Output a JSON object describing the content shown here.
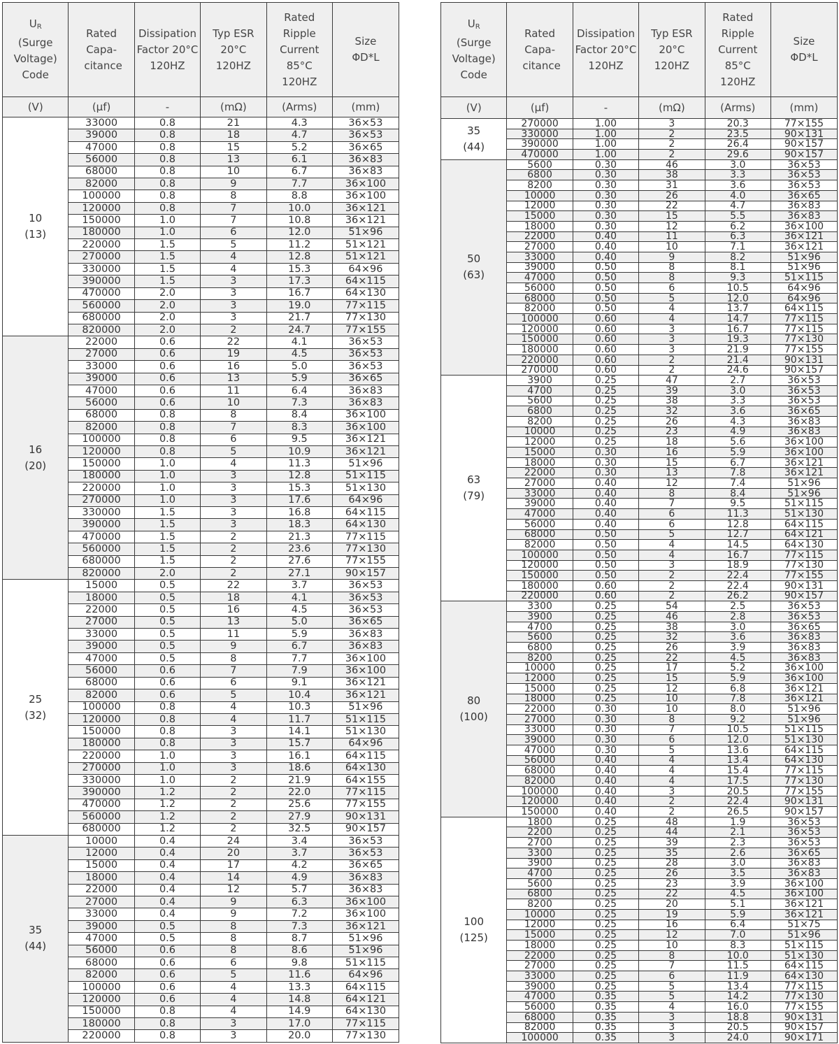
{
  "headers": {
    "voltage": [
      "U",
      "R",
      "(Surge",
      "Voltage)",
      "Code"
    ],
    "capacitance": "Rated Capa- citance",
    "df": "Dissipation Factor 20°C 120HZ",
    "esr": "Typ ESR 20°C 120HZ",
    "ripple": "Rated Ripple Current 85°C 120HZ",
    "size": "Size ΦD*L"
  },
  "units": [
    "(V)",
    "(μf)",
    "-",
    "(mΩ)",
    "(Arms)",
    "(mm)"
  ],
  "colors": {
    "header_bg": "#efefef",
    "stripe": "#efefef",
    "border": "#3a3a3a"
  },
  "left_table": [
    {
      "voltage": "10",
      "surge": "(13)",
      "rows": [
        [
          "33000",
          "0.8",
          "21",
          "4.3",
          "36×53"
        ],
        [
          "39000",
          "0.8",
          "18",
          "4.7",
          "36×53"
        ],
        [
          "47000",
          "0.8",
          "15",
          "5.2",
          "36×65"
        ],
        [
          "56000",
          "0.8",
          "13",
          "6.1",
          "36×83"
        ],
        [
          "68000",
          "0.8",
          "10",
          "6.7",
          "36×83"
        ],
        [
          "82000",
          "0.8",
          "9",
          "7.7",
          "36×100"
        ],
        [
          "100000",
          "0.8",
          "8",
          "8.8",
          "36×100"
        ],
        [
          "120000",
          "0.8",
          "7",
          "10.0",
          "36×121"
        ],
        [
          "150000",
          "1.0",
          "7",
          "10.8",
          "36×121"
        ],
        [
          "180000",
          "1.0",
          "6",
          "12.0",
          "51×96"
        ],
        [
          "220000",
          "1.5",
          "5",
          "11.2",
          "51×121"
        ],
        [
          "270000",
          "1.5",
          "4",
          "12.8",
          "51×121"
        ],
        [
          "330000",
          "1.5",
          "4",
          "15.3",
          "64×96"
        ],
        [
          "390000",
          "1.5",
          "3",
          "17.3",
          "64×115"
        ],
        [
          "470000",
          "2.0",
          "3",
          "16.7",
          "64×130"
        ],
        [
          "560000",
          "2.0",
          "3",
          "19.0",
          "77×115"
        ],
        [
          "680000",
          "2.0",
          "3",
          "21.7",
          "77×130"
        ],
        [
          "820000",
          "2.0",
          "2",
          "24.7",
          "77×155"
        ]
      ]
    },
    {
      "voltage": "16",
      "surge": "(20)",
      "rows": [
        [
          "22000",
          "0.6",
          "22",
          "4.1",
          "36×53"
        ],
        [
          "27000",
          "0.6",
          "19",
          "4.5",
          "36×53"
        ],
        [
          "33000",
          "0.6",
          "16",
          "5.0",
          "36×53"
        ],
        [
          "39000",
          "0.6",
          "13",
          "5.9",
          "36×65"
        ],
        [
          "47000",
          "0.6",
          "11",
          "6.4",
          "36×83"
        ],
        [
          "56000",
          "0.6",
          "10",
          "7.3",
          "36×83"
        ],
        [
          "68000",
          "0.8",
          "8",
          "8.4",
          "36×100"
        ],
        [
          "82000",
          "0.8",
          "7",
          "8.3",
          "36×100"
        ],
        [
          "100000",
          "0.8",
          "6",
          "9.5",
          "36×121"
        ],
        [
          "120000",
          "0.8",
          "5",
          "10.9",
          "36×121"
        ],
        [
          "150000",
          "1.0",
          "4",
          "11.3",
          "51×96"
        ],
        [
          "180000",
          "1.0",
          "3",
          "12.8",
          "51×115"
        ],
        [
          "220000",
          "1.0",
          "3",
          "15.3",
          "51×130"
        ],
        [
          "270000",
          "1.0",
          "3",
          "17.6",
          "64×96"
        ],
        [
          "330000",
          "1.5",
          "3",
          "16.8",
          "64×115"
        ],
        [
          "390000",
          "1.5",
          "3",
          "18.3",
          "64×130"
        ],
        [
          "470000",
          "1.5",
          "2",
          "21.3",
          "77×115"
        ],
        [
          "560000",
          "1.5",
          "2",
          "23.6",
          "77×130"
        ],
        [
          "680000",
          "1.5",
          "2",
          "27.6",
          "77×155"
        ],
        [
          "820000",
          "2.0",
          "2",
          "27.1",
          "90×157"
        ]
      ]
    },
    {
      "voltage": "25",
      "surge": "(32)",
      "rows": [
        [
          "15000",
          "0.5",
          "22",
          "3.7",
          "36×53"
        ],
        [
          "18000",
          "0.5",
          "18",
          "4.1",
          "36×53"
        ],
        [
          "22000",
          "0.5",
          "16",
          "4.5",
          "36×53"
        ],
        [
          "27000",
          "0.5",
          "13",
          "5.0",
          "36×65"
        ],
        [
          "33000",
          "0.5",
          "11",
          "5.9",
          "36×83"
        ],
        [
          "39000",
          "0.5",
          "9",
          "6.7",
          "36×83"
        ],
        [
          "47000",
          "0.5",
          "8",
          "7.7",
          "36×100"
        ],
        [
          "56000",
          "0.6",
          "7",
          "7.9",
          "36×100"
        ],
        [
          "68000",
          "0.6",
          "6",
          "9.1",
          "36×121"
        ],
        [
          "82000",
          "0.6",
          "5",
          "10.4",
          "36×121"
        ],
        [
          "100000",
          "0.8",
          "4",
          "10.3",
          "51×96"
        ],
        [
          "120000",
          "0.8",
          "4",
          "11.7",
          "51×115"
        ],
        [
          "150000",
          "0.8",
          "3",
          "14.1",
          "51×130"
        ],
        [
          "180000",
          "0.8",
          "3",
          "15.7",
          "64×96"
        ],
        [
          "220000",
          "1.0",
          "3",
          "16.1",
          "64×115"
        ],
        [
          "270000",
          "1.0",
          "3",
          "18.6",
          "64×130"
        ],
        [
          "330000",
          "1.0",
          "2",
          "21.9",
          "64×155"
        ],
        [
          "390000",
          "1.2",
          "2",
          "22.0",
          "77×115"
        ],
        [
          "470000",
          "1.2",
          "2",
          "25.6",
          "77×155"
        ],
        [
          "560000",
          "1.2",
          "2",
          "27.9",
          "90×131"
        ],
        [
          "680000",
          "1.2",
          "2",
          "32.5",
          "90×157"
        ]
      ]
    },
    {
      "voltage": "35",
      "surge": "(44)",
      "rows": [
        [
          "10000",
          "0.4",
          "24",
          "3.4",
          "36×53"
        ],
        [
          "12000",
          "0.4",
          "20",
          "3.7",
          "36×53"
        ],
        [
          "15000",
          "0.4",
          "17",
          "4.2",
          "36×65"
        ],
        [
          "18000",
          "0.4",
          "14",
          "4.9",
          "36×83"
        ],
        [
          "22000",
          "0.4",
          "12",
          "5.7",
          "36×83"
        ],
        [
          "27000",
          "0.4",
          "9",
          "6.3",
          "36×100"
        ],
        [
          "33000",
          "0.4",
          "9",
          "7.2",
          "36×100"
        ],
        [
          "39000",
          "0.5",
          "8",
          "7.3",
          "36×121"
        ],
        [
          "47000",
          "0.5",
          "8",
          "8.7",
          "51×96"
        ],
        [
          "56000",
          "0.6",
          "8",
          "8.6",
          "51×96"
        ],
        [
          "68000",
          "0.6",
          "6",
          "9.8",
          "51×115"
        ],
        [
          "82000",
          "0.6",
          "5",
          "11.6",
          "64×96"
        ],
        [
          "100000",
          "0.6",
          "4",
          "13.3",
          "64×115"
        ],
        [
          "120000",
          "0.6",
          "4",
          "14.8",
          "64×121"
        ],
        [
          "150000",
          "0.8",
          "4",
          "14.9",
          "64×130"
        ],
        [
          "180000",
          "0.8",
          "3",
          "17.0",
          "77×115"
        ],
        [
          "220000",
          "0.8",
          "3",
          "20.0",
          "77×130"
        ]
      ]
    }
  ],
  "right_table": [
    {
      "voltage": "35",
      "surge": "(44)",
      "rows": [
        [
          "270000",
          "1.00",
          "3",
          "20.3",
          "77×155"
        ],
        [
          "330000",
          "1.00",
          "2",
          "23.5",
          "90×131"
        ],
        [
          "390000",
          "1.00",
          "2",
          "26.4",
          "90×157"
        ],
        [
          "470000",
          "1.00",
          "2",
          "29.6",
          "90×157"
        ]
      ]
    },
    {
      "voltage": "50",
      "surge": "(63)",
      "rows": [
        [
          "5600",
          "0.30",
          "46",
          "3.0",
          "36×53"
        ],
        [
          "6800",
          "0.30",
          "38",
          "3.3",
          "36×53"
        ],
        [
          "8200",
          "0.30",
          "31",
          "3.6",
          "36×53"
        ],
        [
          "10000",
          "0.30",
          "26",
          "4.0",
          "36×65"
        ],
        [
          "12000",
          "0.30",
          "22",
          "4.7",
          "36×83"
        ],
        [
          "15000",
          "0.30",
          "15",
          "5.5",
          "36×83"
        ],
        [
          "18000",
          "0.30",
          "12",
          "6.2",
          "36×100"
        ],
        [
          "22000",
          "0.40",
          "11",
          "6.3",
          "36×121"
        ],
        [
          "27000",
          "0.40",
          "10",
          "7.1",
          "36×121"
        ],
        [
          "33000",
          "0.40",
          "9",
          "8.2",
          "51×96"
        ],
        [
          "39000",
          "0.50",
          "8",
          "8.1",
          "51×96"
        ],
        [
          "47000",
          "0.50",
          "8",
          "9.3",
          "51×115"
        ],
        [
          "56000",
          "0.50",
          "6",
          "10.5",
          "64×96"
        ],
        [
          "68000",
          "0.50",
          "5",
          "12.0",
          "64×96"
        ],
        [
          "82000",
          "0.50",
          "4",
          "13.7",
          "64×115"
        ],
        [
          "100000",
          "0.60",
          "4",
          "14.7",
          "77×115"
        ],
        [
          "120000",
          "0.60",
          "3",
          "16.7",
          "77×115"
        ],
        [
          "150000",
          "0.60",
          "3",
          "19.3",
          "77×130"
        ],
        [
          "180000",
          "0.60",
          "3",
          "21.9",
          "77×155"
        ],
        [
          "220000",
          "0.60",
          "2",
          "21.4",
          "90×131"
        ],
        [
          "270000",
          "0.60",
          "2",
          "24.6",
          "90×157"
        ]
      ]
    },
    {
      "voltage": "63",
      "surge": "(79)",
      "rows": [
        [
          "3900",
          "0.25",
          "47",
          "2.7",
          "36×53"
        ],
        [
          "4700",
          "0.25",
          "39",
          "3.0",
          "36×53"
        ],
        [
          "5600",
          "0.25",
          "38",
          "3.3",
          "36×53"
        ],
        [
          "6800",
          "0.25",
          "32",
          "3.6",
          "36×65"
        ],
        [
          "8200",
          "0.25",
          "26",
          "4.3",
          "36×83"
        ],
        [
          "10000",
          "0.25",
          "23",
          "4.9",
          "36×83"
        ],
        [
          "12000",
          "0.25",
          "18",
          "5.6",
          "36×100"
        ],
        [
          "15000",
          "0.30",
          "16",
          "5.9",
          "36×100"
        ],
        [
          "18000",
          "0.30",
          "15",
          "6.7",
          "36×121"
        ],
        [
          "22000",
          "0.30",
          "13",
          "7.8",
          "36×121"
        ],
        [
          "27000",
          "0.40",
          "12",
          "7.4",
          "51×96"
        ],
        [
          "33000",
          "0.40",
          "8",
          "8.4",
          "51×96"
        ],
        [
          "39000",
          "0.40",
          "7",
          "9.5",
          "51×115"
        ],
        [
          "47000",
          "0.40",
          "6",
          "11.3",
          "51×130"
        ],
        [
          "56000",
          "0.40",
          "6",
          "12.8",
          "64×115"
        ],
        [
          "68000",
          "0.50",
          "5",
          "12.7",
          "64×121"
        ],
        [
          "82000",
          "0.50",
          "4",
          "14.5",
          "64×130"
        ],
        [
          "100000",
          "0.50",
          "4",
          "16.7",
          "77×115"
        ],
        [
          "120000",
          "0.50",
          "3",
          "18.9",
          "77×130"
        ],
        [
          "150000",
          "0.50",
          "2",
          "22.4",
          "77×155"
        ],
        [
          "180000",
          "0.60",
          "2",
          "22.4",
          "90×131"
        ],
        [
          "220000",
          "0.60",
          "2",
          "26.2",
          "90×157"
        ]
      ]
    },
    {
      "voltage": "80",
      "surge": "(100)",
      "rows": [
        [
          "3300",
          "0.25",
          "54",
          "2.5",
          "36×53"
        ],
        [
          "3900",
          "0.25",
          "46",
          "2.8",
          "36×53"
        ],
        [
          "4700",
          "0.25",
          "38",
          "3.0",
          "36×65"
        ],
        [
          "5600",
          "0.25",
          "32",
          "3.6",
          "36×83"
        ],
        [
          "6800",
          "0.25",
          "26",
          "3.9",
          "36×83"
        ],
        [
          "8200",
          "0.25",
          "22",
          "4.5",
          "36×83"
        ],
        [
          "10000",
          "0.25",
          "17",
          "5.2",
          "36×100"
        ],
        [
          "12000",
          "0.25",
          "15",
          "5.9",
          "36×100"
        ],
        [
          "15000",
          "0.25",
          "12",
          "6.8",
          "36×121"
        ],
        [
          "18000",
          "0.25",
          "10",
          "7.8",
          "36×121"
        ],
        [
          "22000",
          "0.30",
          "10",
          "8.0",
          "51×96"
        ],
        [
          "27000",
          "0.30",
          "8",
          "9.2",
          "51×96"
        ],
        [
          "33000",
          "0.30",
          "7",
          "10.5",
          "51×115"
        ],
        [
          "39000",
          "0.30",
          "6",
          "12.0",
          "51×130"
        ],
        [
          "47000",
          "0.30",
          "5",
          "13.6",
          "64×115"
        ],
        [
          "56000",
          "0.40",
          "4",
          "13.4",
          "64×130"
        ],
        [
          "68000",
          "0.40",
          "4",
          "15.4",
          "77×115"
        ],
        [
          "82000",
          "0.40",
          "4",
          "17.5",
          "77×130"
        ],
        [
          "100000",
          "0.40",
          "3",
          "20.5",
          "77×155"
        ],
        [
          "120000",
          "0.40",
          "2",
          "22.4",
          "90×131"
        ],
        [
          "150000",
          "0.40",
          "2",
          "26.5",
          "90×157"
        ]
      ]
    },
    {
      "voltage": "100",
      "surge": "(125)",
      "rows": [
        [
          "1800",
          "0.25",
          "48",
          "1.9",
          "36×53"
        ],
        [
          "2200",
          "0.25",
          "44",
          "2.1",
          "36×53"
        ],
        [
          "2700",
          "0.25",
          "39",
          "2.3",
          "36×53"
        ],
        [
          "3300",
          "0.25",
          "35",
          "2.6",
          "36×65"
        ],
        [
          "3900",
          "0.25",
          "28",
          "3.0",
          "36×83"
        ],
        [
          "4700",
          "0.25",
          "26",
          "3.5",
          "36×83"
        ],
        [
          "5600",
          "0.25",
          "23",
          "3.9",
          "36×100"
        ],
        [
          "6800",
          "0.25",
          "22",
          "4.5",
          "36×100"
        ],
        [
          "8200",
          "0.25",
          "20",
          "5.1",
          "36×121"
        ],
        [
          "10000",
          "0.25",
          "19",
          "5.9",
          "36×121"
        ],
        [
          "12000",
          "0.25",
          "16",
          "6.4",
          "51×75"
        ],
        [
          "15000",
          "0.25",
          "12",
          "7.0",
          "51×96"
        ],
        [
          "18000",
          "0.25",
          "10",
          "8.3",
          "51×115"
        ],
        [
          "22000",
          "0.25",
          "8",
          "10.0",
          "51×130"
        ],
        [
          "27000",
          "0.25",
          "7",
          "11.5",
          "64×115"
        ],
        [
          "33000",
          "0.25",
          "6",
          "11.9",
          "64×130"
        ],
        [
          "39000",
          "0.25",
          "5",
          "13.4",
          "77×115"
        ],
        [
          "47000",
          "0.35",
          "5",
          "14.2",
          "77×130"
        ],
        [
          "56000",
          "0.35",
          "4",
          "16.0",
          "77×155"
        ],
        [
          "68000",
          "0.35",
          "3",
          "18.8",
          "90×131"
        ],
        [
          "82000",
          "0.35",
          "3",
          "20.5",
          "90×157"
        ],
        [
          "100000",
          "0.35",
          "3",
          "24.0",
          "90×171"
        ]
      ]
    }
  ]
}
